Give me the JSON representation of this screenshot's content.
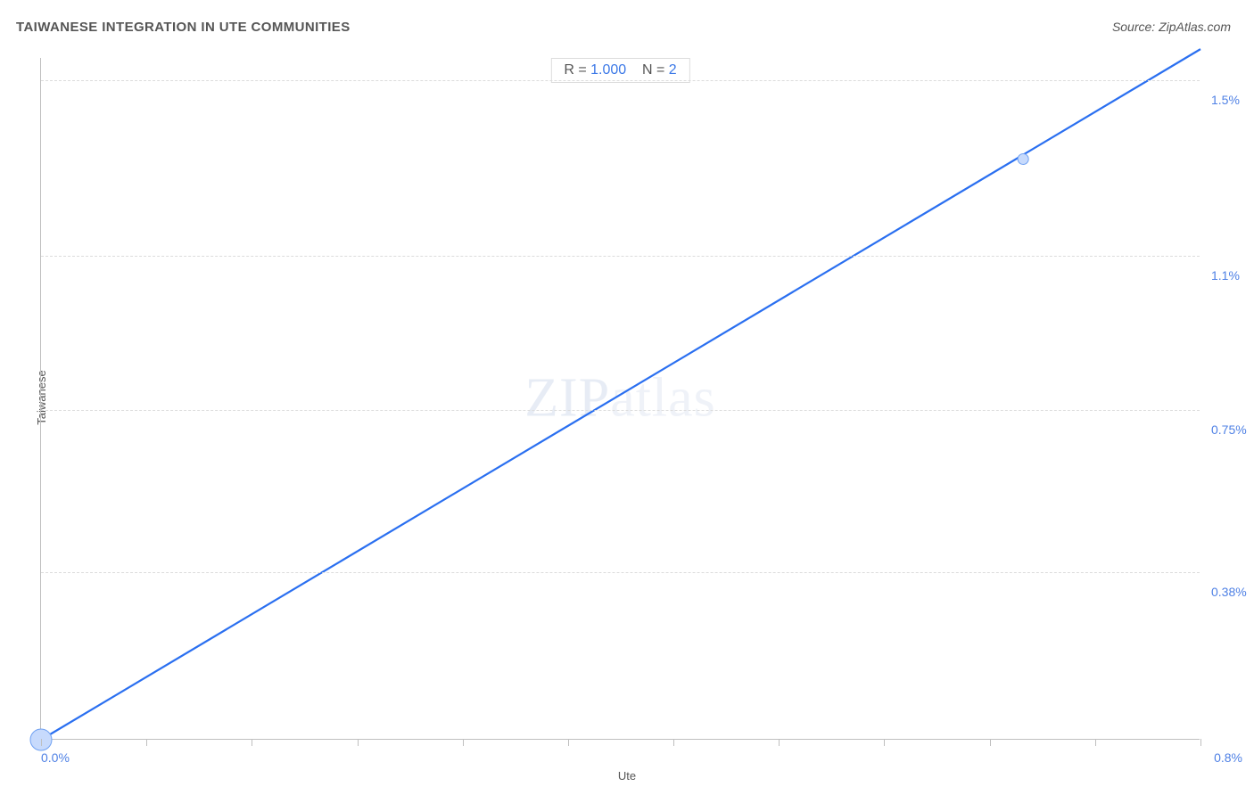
{
  "title": "TAIWANESE INTEGRATION IN UTE COMMUNITIES",
  "source": "Source: ZipAtlas.com",
  "x_axis": {
    "label": "Ute",
    "min": 0.0,
    "max": 0.85,
    "start_label": "0.0%",
    "end_label": "0.8%",
    "tick_count": 11
  },
  "y_axis": {
    "label": "Taiwanese",
    "min": 0.0,
    "max": 1.55,
    "grid_values": [
      0.38,
      0.75,
      1.1,
      1.5
    ],
    "grid_labels": [
      "0.38%",
      "0.75%",
      "1.1%",
      "1.5%"
    ]
  },
  "stats": {
    "r_label": "R = ",
    "r_value": "1.000",
    "n_label": "N = ",
    "n_value": "2"
  },
  "line": {
    "x1": 0.0,
    "y1": 0.0,
    "x2": 0.85,
    "y2": 1.57,
    "color": "#2a6ff0",
    "width": 2.2
  },
  "points": [
    {
      "x": 0.0,
      "y": 0.0,
      "r": 12,
      "fill": "#c7dafc",
      "stroke": "#6ea0f2"
    },
    {
      "x": 0.72,
      "y": 1.32,
      "r": 6,
      "fill": "#c7dafc",
      "stroke": "#6ea0f2"
    }
  ],
  "watermark": {
    "bold": "ZIP",
    "thin": "atlas"
  },
  "colors": {
    "title": "#555555",
    "axis_label": "#555555",
    "tick_label": "#4f81e5",
    "grid": "#dcdcdc",
    "axis_line": "#bfbfbf",
    "background": "#ffffff"
  },
  "font": {
    "title_size": 15,
    "axis_size": 13,
    "tick_size": 14,
    "stats_size": 16
  }
}
